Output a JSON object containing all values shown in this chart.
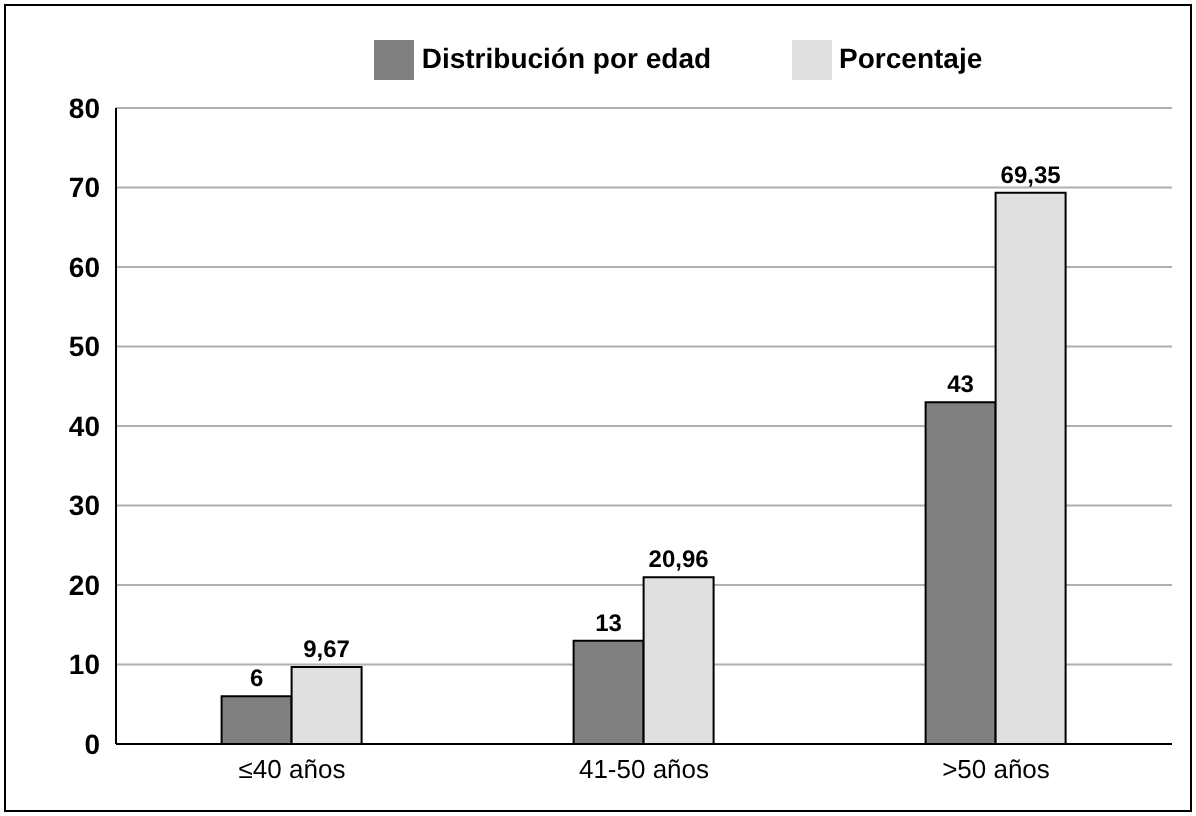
{
  "chart_data": {
    "type": "bar",
    "categories": [
      "≤40 años",
      "41-50 años",
      ">50 años"
    ],
    "series": [
      {
        "name": "Distribución por edad",
        "color": "#808080",
        "values": [
          6,
          13,
          43
        ],
        "value_labels": [
          "6",
          "13",
          "43"
        ]
      },
      {
        "name": "Porcentaje",
        "color": "#e0e0e0",
        "values": [
          9.67,
          20.96,
          69.35
        ],
        "value_labels": [
          "9,67",
          "20,96",
          "69,35"
        ]
      }
    ],
    "ylim": [
      0,
      80
    ],
    "yticks": [
      0,
      10,
      20,
      30,
      40,
      50,
      60,
      70,
      80
    ],
    "grid": "y",
    "legend": "top"
  }
}
